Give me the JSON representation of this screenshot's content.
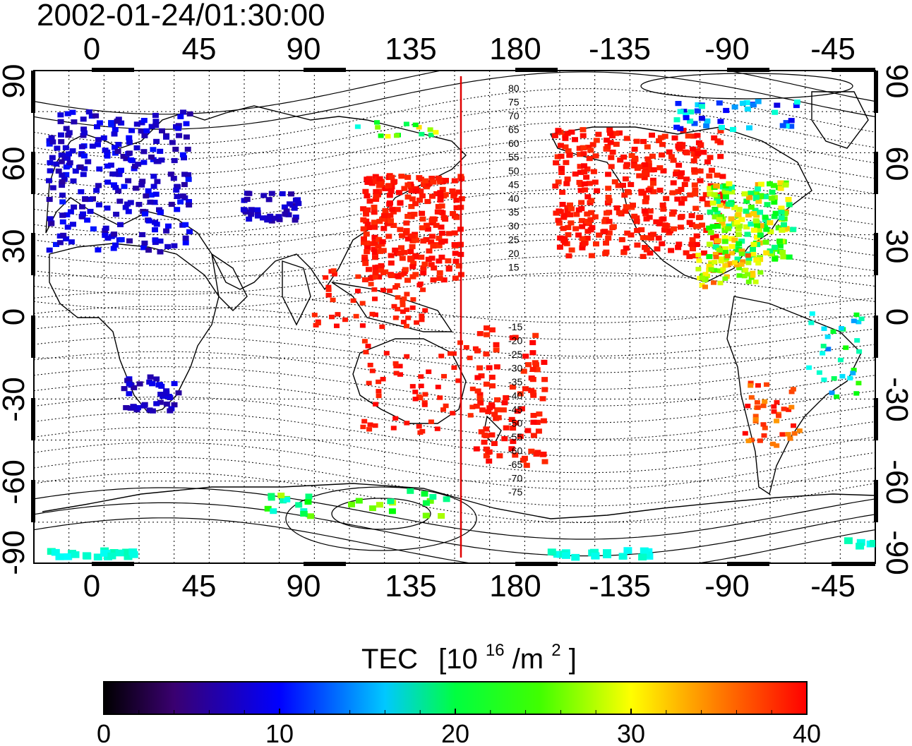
{
  "title": "2002-01-24/01:30:00",
  "map": {
    "top_ticks": [
      "0",
      "45",
      "90",
      "135",
      "180",
      "-135",
      "-90",
      "-45"
    ],
    "bottom_ticks": [
      "0",
      "45",
      "90",
      "135",
      "180",
      "-135",
      "-90",
      "-45"
    ],
    "left_ticks": [
      "90",
      "60",
      "30",
      "0",
      "-30",
      "-60",
      "-90"
    ],
    "right_ticks": [
      "90",
      "60",
      "30",
      "0",
      "-30",
      "-60",
      "-90"
    ],
    "contour_labels_north": [
      "80",
      "75",
      "70",
      "65",
      "60",
      "55",
      "50",
      "45",
      "40",
      "35",
      "30",
      "25",
      "20",
      "15"
    ],
    "contour_labels_south": [
      "-15",
      "-20",
      "-25",
      "-30",
      "-35",
      "-40",
      "-45",
      "-50",
      "-55",
      "-60",
      "-65",
      "-70",
      "-75"
    ]
  },
  "colorbar": {
    "title": "TEC",
    "unit": "[10",
    "unit_exp": "16",
    "unit_mid": "/m",
    "unit_exp2": "2",
    "unit_end": "]",
    "ticks": [
      "0",
      "10",
      "20",
      "30",
      "40"
    ],
    "range": [
      0,
      40
    ]
  },
  "colors": {
    "colormap": [
      "#000000",
      "#3a0070",
      "#0000ff",
      "#00ffff",
      "#00ff00",
      "#ffff00",
      "#ff0000"
    ],
    "high_tec": "#ff1a00",
    "terminator": "#e00000"
  }
}
